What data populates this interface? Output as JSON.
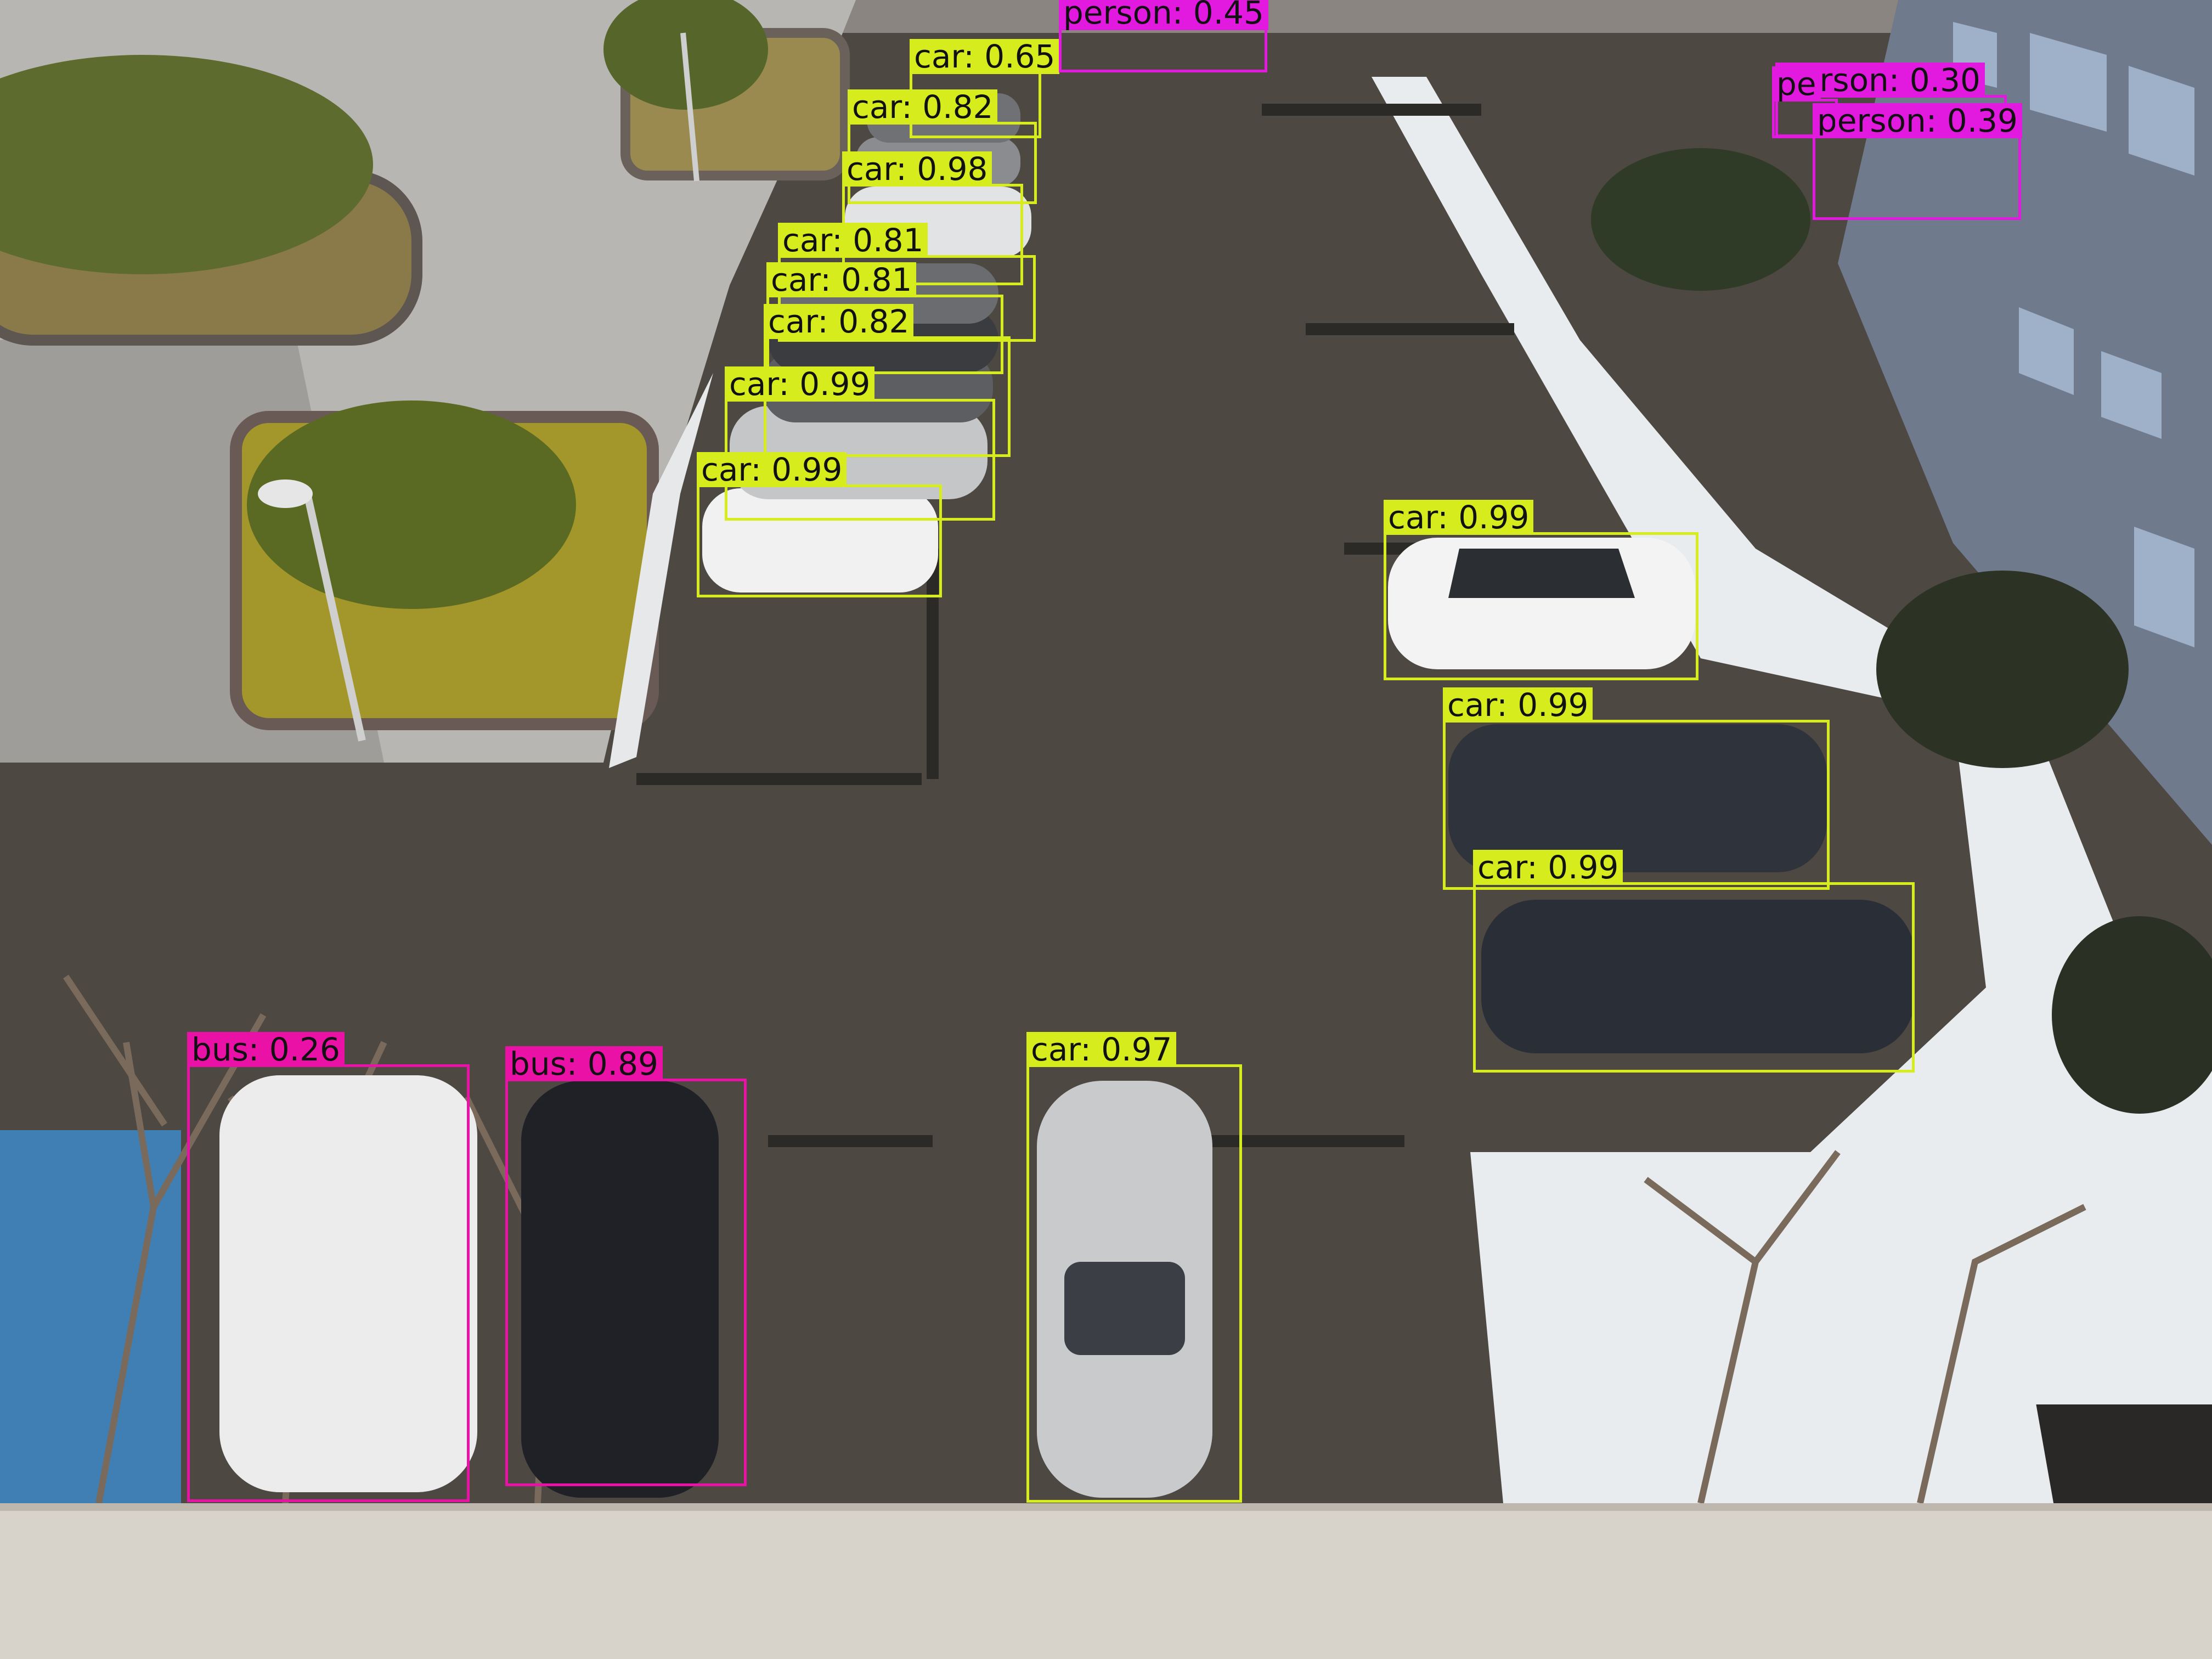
{
  "photo": {
    "scene": "aerial view of a snowy parking lot next to a building",
    "colors": {
      "pavement": "#4a4640",
      "snow": "#eef0f2",
      "building": "#6f7a8c",
      "car_box": "#d7ec1c",
      "bus_box": "#ea11a6",
      "person_box": "#e21ae0"
    }
  },
  "detections": [
    {
      "cls": "car",
      "label": "car: 0.65"
    },
    {
      "cls": "person",
      "label": "person: 0.45"
    },
    {
      "cls": "car",
      "label": "car: 0.82"
    },
    {
      "cls": "car",
      "label": "car: 0.98"
    },
    {
      "cls": "car",
      "label": "car: 0.81"
    },
    {
      "cls": "car",
      "label": "car: 0.81"
    },
    {
      "cls": "car",
      "label": "car: 0.82"
    },
    {
      "cls": "car",
      "label": "car: 0.99"
    },
    {
      "cls": "car",
      "label": "car: 0.99"
    },
    {
      "cls": "person",
      "label": "person: 0.30"
    },
    {
      "cls": "person",
      "label": "person: 0.39"
    },
    {
      "cls": "person",
      "label": "pe"
    },
    {
      "cls": "car",
      "label": "car: 0.99"
    },
    {
      "cls": "car",
      "label": "car: 0.99"
    },
    {
      "cls": "car",
      "label": "car: 0.99"
    },
    {
      "cls": "bus",
      "label": "bus: 0.26"
    },
    {
      "cls": "bus",
      "label": "bus: 0.89"
    },
    {
      "cls": "car",
      "label": "car: 0.97"
    }
  ]
}
